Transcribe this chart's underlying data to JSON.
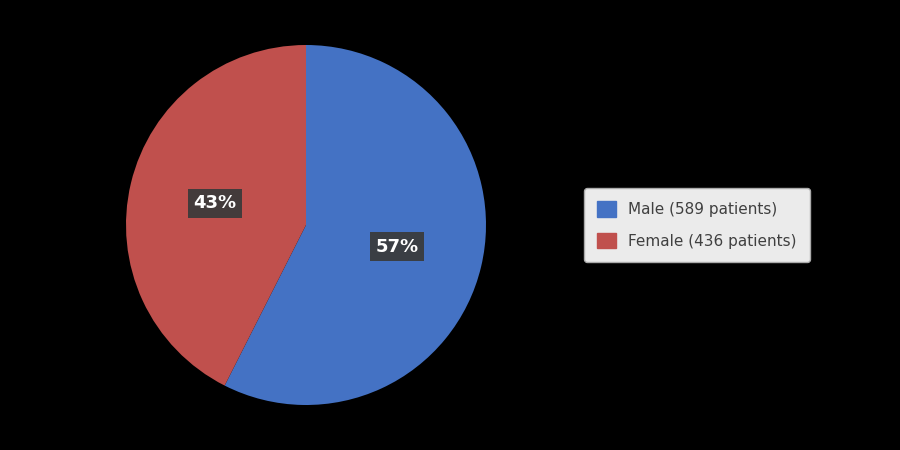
{
  "labels": [
    "Male (589 patients)",
    "Female (436 patients)"
  ],
  "values": [
    589,
    436
  ],
  "percentages": [
    "57%",
    "43%"
  ],
  "colors": [
    "#4472C4",
    "#C0504D"
  ],
  "background_color": "#000000",
  "legend_bg_color": "#EBEBEB",
  "label_bg_color": "#3A3A3A",
  "label_text_color": "#FFFFFF",
  "label_fontsize": 13,
  "legend_fontsize": 11,
  "startangle": 90,
  "label_r": 0.52
}
